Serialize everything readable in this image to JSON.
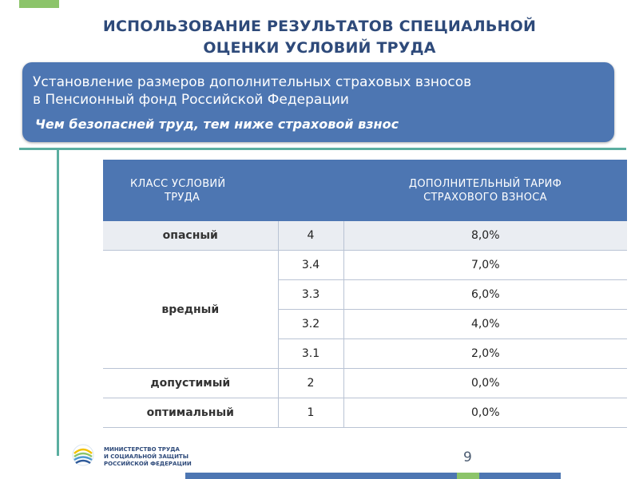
{
  "title": {
    "line1": "ИСПОЛЬЗОВАНИЕ РЕЗУЛЬТАТОВ СПЕЦИАЛЬНОЙ",
    "line2": "ОЦЕНКИ УСЛОВИЙ ТРУДА"
  },
  "banner": {
    "line1": "Установление размеров дополнительных страховых взносов",
    "line2": "в Пенсионный фонд Российской Федерации",
    "slogan": "Чем безопасней труд, тем ниже страховой взнос"
  },
  "table": {
    "header_class_line1": "КЛАСС УСЛОВИЙ",
    "header_class_line2": "ТРУДА",
    "header_tariff_line1": "ДОПОЛНИТЕЛЬНЫЙ ТАРИФ",
    "header_tariff_line2": "СТРАХОВОГО ВЗНОСА",
    "rows": [
      {
        "class": "опасный",
        "level": "4",
        "tariff": "8,0%"
      },
      {
        "class": "вредный",
        "level": "3.4",
        "tariff": "7,0%"
      },
      {
        "class": "",
        "level": "3.3",
        "tariff": "6,0%"
      },
      {
        "class": "",
        "level": "3.2",
        "tariff": "4,0%"
      },
      {
        "class": "",
        "level": "3.1",
        "tariff": "2,0%"
      },
      {
        "class": "допустимый",
        "level": "2",
        "tariff": "0,0%"
      },
      {
        "class": "оптимальный",
        "level": "1",
        "tariff": "0,0%"
      }
    ]
  },
  "footer": {
    "ministry_line1": "МИНИСТЕРСТВО ТРУДА",
    "ministry_line2": "И СОЦИАЛЬНОЙ ЗАЩИТЫ",
    "ministry_line3": "РОССИЙСКОЙ ФЕДЕРАЦИИ",
    "page_number": "9",
    "logo_icon": "ministry-logo-icon"
  },
  "colors": {
    "title": "#2e4a7a",
    "banner": "#4d76b2",
    "accent_green": "#8cc46a",
    "accent_teal": "#5aaea0",
    "row_shade": "#eaedf2"
  }
}
